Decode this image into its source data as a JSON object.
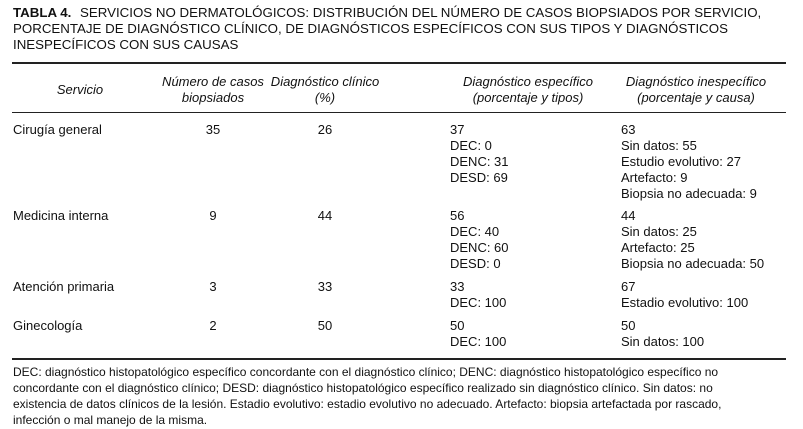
{
  "title": {
    "label": "TABLA 4.",
    "lines": [
      "SERVICIOS NO DERMATOLÓGICOS: DISTRIBUCIÓN DEL NÚMERO DE CASOS BIOPSIADOS POR SERVICIO,",
      "PORCENTAJE DE DIAGNÓSTICO CLÍNICO, DE DIAGNÓSTICOS ESPECÍFICOS CON SUS TIPOS Y DIAGNÓSTICOS",
      "INESPECÍFICOS CON SUS CAUSAS"
    ]
  },
  "table": {
    "header": [
      [
        "Servicio"
      ],
      [
        "Número de casos",
        "biopsiados"
      ],
      [
        "Diagnóstico clínico",
        "(%)"
      ],
      [
        "Diagnóstico específico",
        "(porcentaje y tipos)"
      ],
      [
        "Diagnóstico inespecífico",
        "(porcentaje y causa)"
      ]
    ],
    "rows": [
      [
        [
          "Cirugía general"
        ],
        [
          "35"
        ],
        [
          "26"
        ],
        [
          "37",
          "DEC: 0",
          "DENC: 31",
          "DESD: 69"
        ],
        [
          "63",
          "Sin datos: 55",
          "Estudio evolutivo: 27",
          "Artefacto: 9",
          "Biopsia no adecuada: 9"
        ]
      ],
      [
        [
          "Medicina interna"
        ],
        [
          "9"
        ],
        [
          "44"
        ],
        [
          "56",
          "DEC: 40",
          "DENC: 60",
          "DESD: 0"
        ],
        [
          "44",
          "Sin datos: 25",
          "Artefacto: 25",
          "Biopsia no adecuada: 50"
        ]
      ],
      [
        [
          "Atención primaria"
        ],
        [
          "3"
        ],
        [
          "33"
        ],
        [
          "33",
          "DEC: 100"
        ],
        [
          "67",
          "Estadio evolutivo: 100"
        ]
      ],
      [
        [
          "Ginecología"
        ],
        [
          "2"
        ],
        [
          "50"
        ],
        [
          "50",
          "DEC: 100"
        ],
        [
          "50",
          "Sin datos: 100"
        ]
      ]
    ]
  },
  "footnote": [
    "DEC: diagnóstico histopatológico específico concordante con el diagnóstico clínico; DENC: diagnóstico histopatológico específico no",
    "concordante con el diagnóstico clínico; DESD: diagnóstico histopatológico específico realizado sin diagnóstico clínico. Sin datos: no",
    "existencia de datos clínicos de la lesión. Estadio evolutivo: estadio evolutivo no adecuado. Artefacto: biopsia artefactada por rascado,",
    "infección o mal manejo de la misma."
  ]
}
